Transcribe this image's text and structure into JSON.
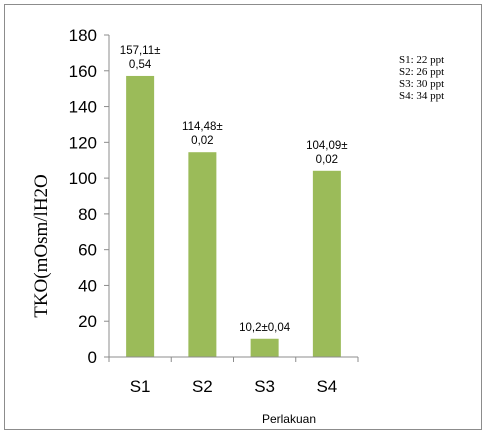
{
  "chart_data": {
    "type": "bar",
    "categories": [
      "S1",
      "S2",
      "S3",
      "S4"
    ],
    "values": [
      157.11,
      114.48,
      10.2,
      104.09
    ],
    "data_labels": [
      [
        "157,11±",
        "0,54"
      ],
      [
        "114,48±",
        "0,02"
      ],
      [
        "10,2±0,04"
      ],
      [
        "104,09±",
        "0,02"
      ]
    ],
    "xlabel": "Perlakuan",
    "ylabel": "TKO(mOsm/lH2O",
    "ylim": [
      0,
      180
    ],
    "yticks": [
      "0",
      "20",
      "40",
      "60",
      "80",
      "100",
      "120",
      "140",
      "160",
      "180"
    ],
    "legend": [
      "S1: 22 ppt",
      "S2: 26 ppt",
      "S3: 30 ppt",
      "S4: 34 ppt"
    ],
    "legend_position": "top-right",
    "grid": false,
    "bar_color": "#9bbb59"
  }
}
